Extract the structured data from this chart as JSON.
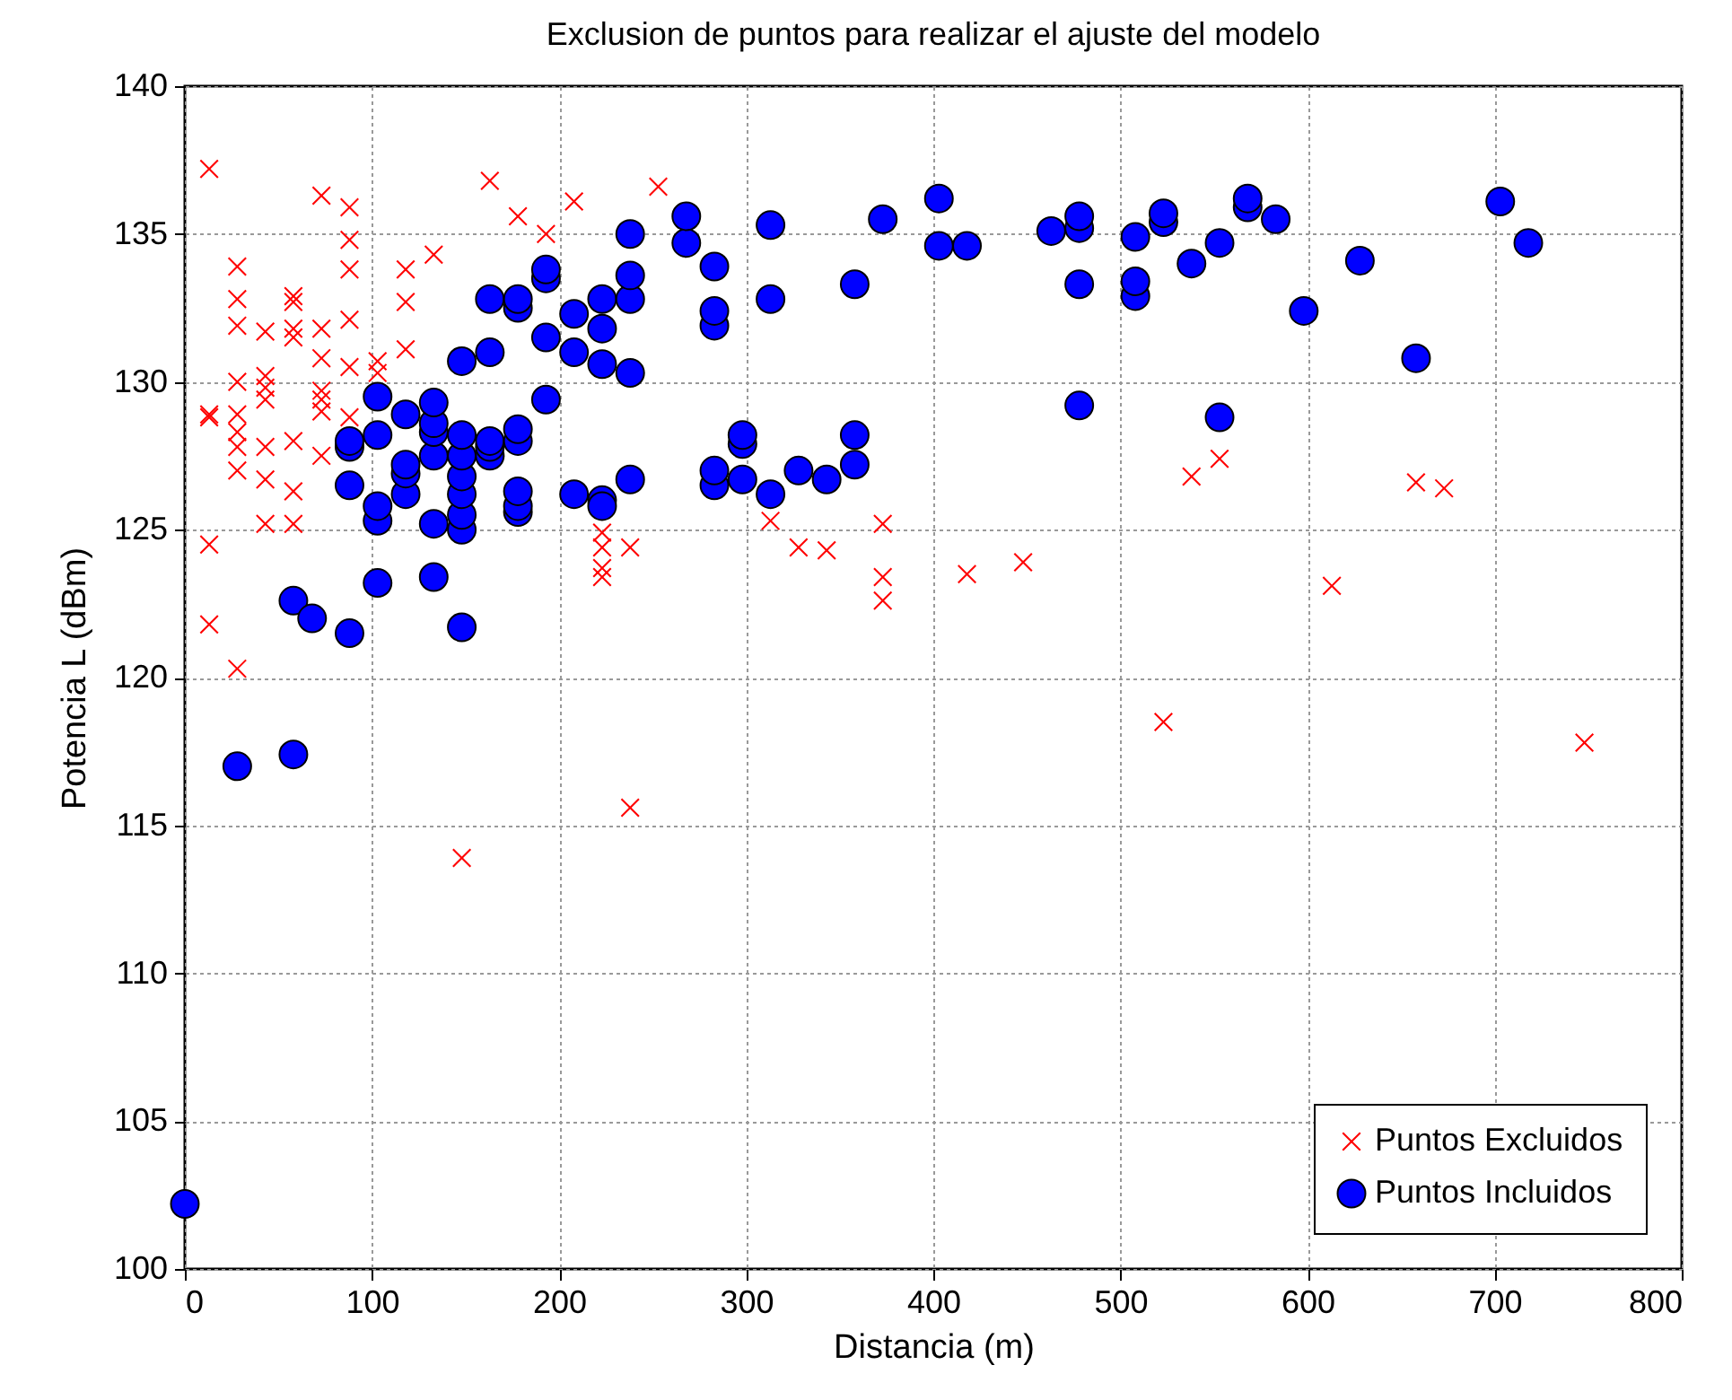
{
  "chart_data": {
    "type": "scatter",
    "title": "Exclusion de puntos para realizar el ajuste del modelo",
    "xlabel": "Distancia (m)",
    "ylabel": "Potencia L (dBm)",
    "xlim": [
      0,
      800
    ],
    "xticks": [
      0,
      100,
      200,
      300,
      400,
      500,
      600,
      700,
      800
    ],
    "ylim": [
      100,
      140
    ],
    "yticks": [
      100,
      105,
      110,
      115,
      120,
      125,
      130,
      135,
      140
    ],
    "grid": true,
    "legend": "bottom right",
    "series": [
      {
        "name": "Puntos Excluidos",
        "color": "#ff0000",
        "marker": "cross",
        "x": [
          13,
          13,
          13,
          13,
          13,
          28,
          28,
          28,
          28,
          28,
          28,
          28,
          28,
          28,
          43,
          43,
          43,
          43,
          43,
          43,
          43,
          58,
          58,
          58,
          58,
          58,
          58,
          58,
          73,
          73,
          73,
          73,
          73,
          73,
          73,
          88,
          88,
          88,
          88,
          88,
          88,
          103,
          103,
          118,
          118,
          118,
          133,
          163,
          178,
          193,
          208,
          253,
          223,
          223,
          223,
          223,
          238,
          238,
          148,
          313,
          328,
          343,
          373,
          373,
          373,
          418,
          448,
          538,
          553,
          523,
          613,
          658,
          673,
          748
        ],
        "values": [
          137.2,
          128.9,
          128.8,
          124.5,
          121.8,
          133.9,
          132.8,
          131.9,
          130.0,
          128.9,
          128.3,
          127.8,
          127.0,
          120.3,
          131.7,
          130.2,
          129.8,
          129.4,
          127.8,
          126.7,
          125.2,
          132.9,
          132.7,
          131.8,
          131.5,
          128.0,
          126.3,
          125.2,
          136.3,
          131.8,
          130.8,
          129.7,
          129.4,
          129.0,
          127.5,
          135.9,
          134.8,
          133.8,
          132.1,
          130.5,
          128.8,
          130.7,
          130.3,
          133.8,
          132.7,
          131.1,
          134.3,
          136.8,
          135.6,
          135.0,
          136.1,
          136.6,
          124.9,
          124.4,
          123.7,
          123.4,
          124.4,
          115.6,
          113.9,
          125.3,
          124.4,
          124.3,
          125.2,
          123.4,
          122.6,
          123.5,
          123.9,
          126.8,
          127.4,
          118.5,
          123.1,
          126.6,
          126.4,
          117.8
        ]
      },
      {
        "name": "Puntos Incluidos",
        "color": "#0000ff",
        "marker": "circle",
        "x": [
          0,
          28,
          58,
          58,
          68,
          88,
          88,
          88,
          88,
          103,
          103,
          103,
          103,
          103,
          118,
          118,
          118,
          118,
          133,
          133,
          133,
          133,
          133,
          133,
          148,
          148,
          148,
          148,
          148,
          148,
          148,
          148,
          163,
          163,
          163,
          163,
          163,
          178,
          178,
          178,
          178,
          178,
          178,
          178,
          193,
          193,
          193,
          193,
          208,
          208,
          208,
          223,
          223,
          223,
          223,
          223,
          238,
          238,
          238,
          238,
          238,
          268,
          268,
          283,
          283,
          283,
          283,
          283,
          298,
          298,
          298,
          313,
          313,
          313,
          328,
          343,
          358,
          358,
          358,
          373,
          403,
          403,
          418,
          463,
          478,
          478,
          478,
          478,
          508,
          508,
          508,
          523,
          523,
          553,
          553,
          538,
          568,
          568,
          583,
          598,
          628,
          658,
          703,
          718
        ],
        "values": [
          102.2,
          117.0,
          117.4,
          122.6,
          122.0,
          121.5,
          126.5,
          127.8,
          128.0,
          123.2,
          125.3,
          125.8,
          128.2,
          129.5,
          126.2,
          126.9,
          127.2,
          128.9,
          123.4,
          125.2,
          127.5,
          128.3,
          128.6,
          129.3,
          121.7,
          125.0,
          125.5,
          126.2,
          126.8,
          127.5,
          128.2,
          130.7,
          131.0,
          127.5,
          127.8,
          128.0,
          132.8,
          125.6,
          125.8,
          126.3,
          128.0,
          128.4,
          132.5,
          132.8,
          129.4,
          131.5,
          133.5,
          133.8,
          126.2,
          131.0,
          132.3,
          126.0,
          125.8,
          130.6,
          131.8,
          132.8,
          126.7,
          130.3,
          132.8,
          133.6,
          135.0,
          134.7,
          135.6,
          126.5,
          127.0,
          131.9,
          132.4,
          133.9,
          126.7,
          127.9,
          128.2,
          126.2,
          132.8,
          135.3,
          127.0,
          126.7,
          127.2,
          128.2,
          133.3,
          135.5,
          136.2,
          134.6,
          134.6,
          135.1,
          129.2,
          133.3,
          135.2,
          135.6,
          132.9,
          133.4,
          134.9,
          135.4,
          135.7,
          128.8,
          134.7,
          134.0,
          135.9,
          136.2,
          135.5,
          132.4,
          134.1,
          130.8,
          136.1,
          134.7
        ]
      }
    ]
  }
}
